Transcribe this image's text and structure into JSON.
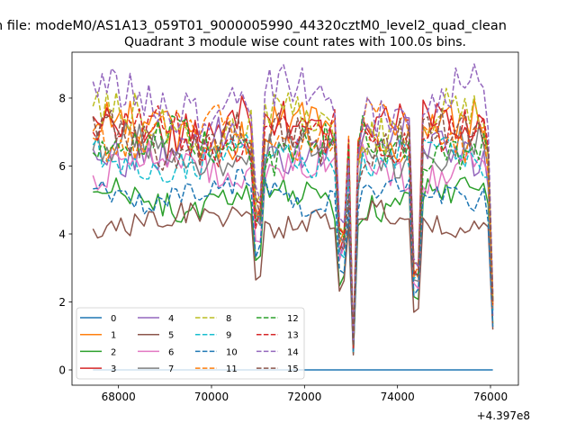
{
  "figure": {
    "suptitle": "n file: modeM0/AS1A13_059T01_9000005990_44320cztM0_level2_quad_clean",
    "axis_offset_label": "+4.397e8"
  },
  "chart_data": {
    "type": "line",
    "title": "Quadrant 3 module wise count rates with 100.0s bins.",
    "xlabel": "",
    "ylabel": "",
    "xlim": [
      67000,
      76600
    ],
    "ylim": [
      -0.45,
      9.35
    ],
    "x_tick_values": [
      68000,
      70000,
      72000,
      74000,
      76000
    ],
    "x_tick_labels": [
      "68000",
      "70000",
      "72000",
      "74000",
      "76000"
    ],
    "y_tick_values": [
      0,
      2,
      4,
      6,
      8
    ],
    "y_tick_labels": [
      "0",
      "2",
      "4",
      "6",
      "8"
    ],
    "grid": false,
    "legend_position": "lower left",
    "legend_columns": 4,
    "x_range": [
      67450,
      76050
    ],
    "x_step": 100,
    "dips": [
      {
        "x": 71000,
        "depth": 0.55
      },
      {
        "x": 72800,
        "depth": 0.75
      },
      {
        "x": 73050,
        "depth": 0.9
      },
      {
        "x": 74400,
        "depth": 0.97
      },
      {
        "x": 76050,
        "depth": 0.72
      }
    ],
    "series": [
      {
        "name": "0",
        "color": "#1f77b4",
        "style": "solid",
        "base": 0.0
      },
      {
        "name": "1",
        "color": "#ff7f0e",
        "style": "solid",
        "base": 7.0
      },
      {
        "name": "2",
        "color": "#2ca02c",
        "style": "solid",
        "base": 5.0
      },
      {
        "name": "3",
        "color": "#d62728",
        "style": "solid",
        "base": 7.2
      },
      {
        "name": "4",
        "color": "#9467bd",
        "style": "solid",
        "base": 6.6
      },
      {
        "name": "5",
        "color": "#8c564b",
        "style": "solid",
        "base": 4.4
      },
      {
        "name": "6",
        "color": "#e377c2",
        "style": "solid",
        "base": 6.0
      },
      {
        "name": "7",
        "color": "#7f7f7f",
        "style": "solid",
        "base": 6.4
      },
      {
        "name": "8",
        "color": "#bcbd22",
        "style": "dashed",
        "base": 7.3
      },
      {
        "name": "9",
        "color": "#17becf",
        "style": "dashed",
        "base": 6.2
      },
      {
        "name": "10",
        "color": "#1f77b4",
        "style": "dashed",
        "base": 5.2
      },
      {
        "name": "11",
        "color": "#ff7f0e",
        "style": "dashed",
        "base": 7.0
      },
      {
        "name": "12",
        "color": "#2ca02c",
        "style": "dashed",
        "base": 6.6
      },
      {
        "name": "13",
        "color": "#d62728",
        "style": "dashed",
        "base": 6.9
      },
      {
        "name": "14",
        "color": "#9467bd",
        "style": "dashed",
        "base": 7.9
      },
      {
        "name": "15",
        "color": "#8c564b",
        "style": "dashed",
        "base": 6.8
      }
    ]
  }
}
